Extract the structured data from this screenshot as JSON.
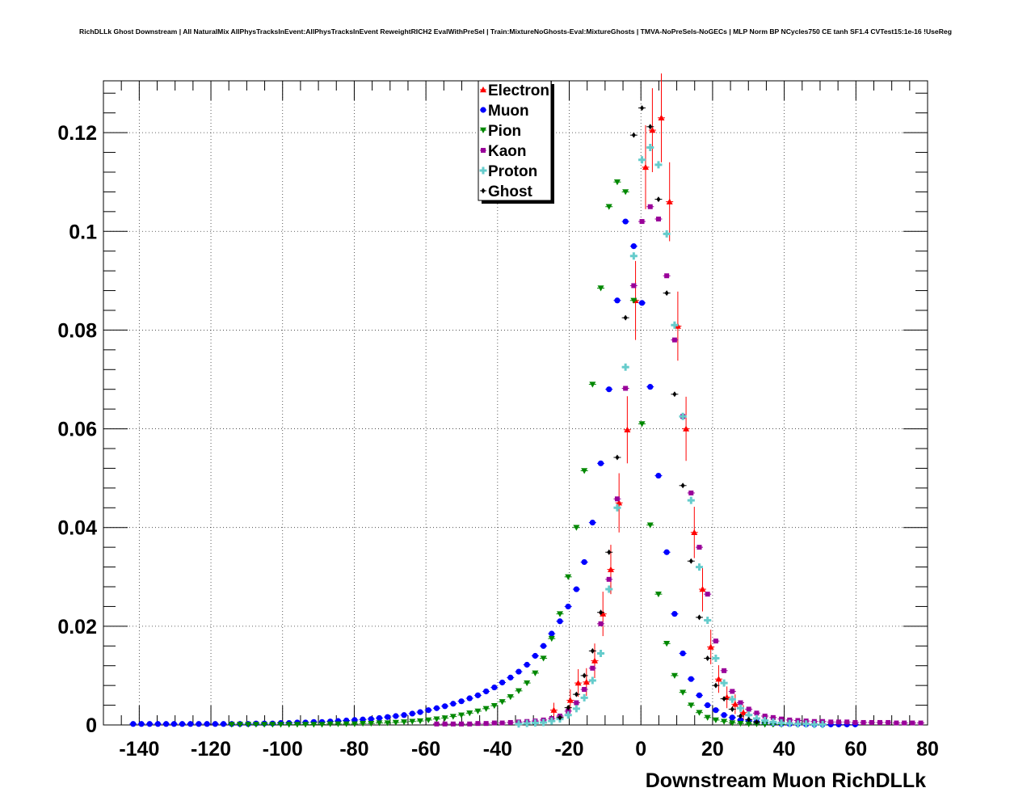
{
  "chart_data": {
    "type": "scatter",
    "title": "RichDLLk Ghost Downstream | All NaturalMix AllPhysTracksInEvent:AllPhysTracksInEvent ReweightRICH2 EvalWithPreSel | Train:MixtureNoGhosts-Eval:MixtureGhosts | TMVA-NoPreSels-NoGECs | MLP Norm BP NCycles750 CE tanh SF1.4 CVTest15:1e-16 !UseReg",
    "xlabel": "Downstream Muon RichDLLk",
    "ylabel": "",
    "xlim": [
      -150,
      80
    ],
    "ylim": [
      0,
      0.1305
    ],
    "grid": true,
    "legend_position": "top-center",
    "x_ticks": [
      "-140",
      "-120",
      "-100",
      "-80",
      "-60",
      "-40",
      "-20",
      "0",
      "20",
      "40",
      "60",
      "80"
    ],
    "y_ticks": [
      "0",
      "0.02",
      "0.04",
      "0.06",
      "0.08",
      "0.1",
      "0.12"
    ],
    "series": [
      {
        "name": "Electron",
        "color": "#ff0000",
        "marker": "triangle-up",
        "x": [
          -24.3,
          -19.7,
          -17.5,
          -15.2,
          -12.9,
          -10.6,
          -8.4,
          -6.1,
          -3.8,
          -1.5,
          1.3,
          3.2,
          5.7,
          8.0,
          10.3,
          12.6,
          14.9,
          17.2,
          19.5,
          21.7,
          24.0,
          26.3,
          28.6
        ],
        "y": [
          0.003,
          0.005,
          0.0085,
          0.0087,
          0.013,
          0.0225,
          0.0315,
          0.045,
          0.0598,
          0.086,
          0.113,
          0.1205,
          0.123,
          0.106,
          0.0808,
          0.06,
          0.039,
          0.0275,
          0.0158,
          0.0093,
          0.0056,
          0.0042,
          0.0025
        ],
        "err": [
          0.0015,
          0.0022,
          0.0028,
          0.0028,
          0.0035,
          0.0045,
          0.005,
          0.006,
          0.0068,
          0.008,
          0.0085,
          0.0085,
          0.009,
          0.008,
          0.007,
          0.0065,
          0.0052,
          0.0045,
          0.0035,
          0.0028,
          0.0022,
          0.002,
          0.0015
        ]
      },
      {
        "name": "Muon",
        "color": "#0000ff",
        "marker": "circle",
        "x": [
          -141.7,
          -139.4,
          -137.1,
          -134.8,
          -132.5,
          -130.3,
          -128.0,
          -125.7,
          -123.4,
          -121.1,
          -118.8,
          -116.5,
          -114.2,
          -111.9,
          -109.6,
          -107.4,
          -105.1,
          -102.8,
          -100.5,
          -98.2,
          -95.9,
          -93.6,
          -91.3,
          -89.0,
          -86.7,
          -84.5,
          -82.2,
          -79.9,
          -77.6,
          -75.3,
          -73.0,
          -70.7,
          -68.4,
          -66.1,
          -63.8,
          -61.6,
          -59.3,
          -57.0,
          -54.7,
          -52.4,
          -50.1,
          -47.8,
          -45.5,
          -43.2,
          -40.9,
          -38.7,
          -36.4,
          -34.1,
          -31.8,
          -29.5,
          -27.2,
          -24.9,
          -22.6,
          -20.3,
          -18.0,
          -15.8,
          -13.5,
          -11.2,
          -8.9,
          -6.6,
          -4.3,
          -2.0,
          0.3,
          2.6,
          4.9,
          7.2,
          9.4,
          11.7,
          14.0,
          16.3,
          18.6,
          20.9,
          23.2,
          25.5,
          27.8,
          30.1,
          32.3,
          34.6,
          36.9,
          39.2,
          41.5,
          43.8,
          46.1,
          48.4,
          50.7,
          53.0,
          55.2,
          57.5,
          59.8
        ],
        "y": [
          0.0002,
          0.0002,
          0.0002,
          0.0002,
          0.0002,
          0.0002,
          0.0002,
          0.0002,
          0.0002,
          0.0002,
          0.0002,
          0.0002,
          0.0002,
          0.0002,
          0.0002,
          0.0003,
          0.0003,
          0.0003,
          0.0004,
          0.0004,
          0.0005,
          0.0005,
          0.0006,
          0.0006,
          0.0007,
          0.0008,
          0.0009,
          0.001,
          0.0011,
          0.0012,
          0.0014,
          0.0016,
          0.0018,
          0.002,
          0.0023,
          0.0026,
          0.003,
          0.0034,
          0.0038,
          0.0043,
          0.0048,
          0.0054,
          0.006,
          0.0068,
          0.0076,
          0.0086,
          0.0096,
          0.0108,
          0.0122,
          0.014,
          0.016,
          0.0185,
          0.021,
          0.024,
          0.0275,
          0.033,
          0.041,
          0.053,
          0.068,
          0.086,
          0.102,
          0.097,
          0.0855,
          0.0685,
          0.0505,
          0.035,
          0.0225,
          0.0145,
          0.0093,
          0.006,
          0.004,
          0.003,
          0.002,
          0.0015,
          0.001,
          0.0008,
          0.0006,
          0.0004,
          0.0003,
          0.0002,
          0.0002,
          0.0002,
          0.0001,
          0.0001,
          0.0001,
          0.0001,
          0.0001,
          0.0001,
          0.0001
        ]
      },
      {
        "name": "Pion",
        "color": "#008800",
        "marker": "triangle-down",
        "x": [
          -114.2,
          -111.9,
          -109.6,
          -107.4,
          -105.1,
          -102.8,
          -100.5,
          -98.2,
          -95.9,
          -93.6,
          -91.3,
          -89.0,
          -86.7,
          -84.5,
          -82.2,
          -79.9,
          -77.6,
          -75.3,
          -73.0,
          -70.7,
          -68.4,
          -66.1,
          -63.8,
          -61.6,
          -59.3,
          -57.0,
          -54.7,
          -52.4,
          -50.1,
          -47.8,
          -45.5,
          -43.2,
          -40.9,
          -38.7,
          -36.4,
          -34.1,
          -31.8,
          -29.5,
          -27.2,
          -24.9,
          -22.6,
          -20.3,
          -18.0,
          -15.8,
          -13.5,
          -11.2,
          -8.9,
          -6.6,
          -4.3,
          -2.0,
          0.3,
          2.6,
          4.9,
          7.2,
          9.4,
          11.7,
          14.0,
          16.3,
          18.6,
          20.9,
          23.2,
          25.5,
          27.8,
          30.1,
          32.3,
          34.6,
          36.9,
          39.2
        ],
        "y": [
          0.0001,
          0.0001,
          0.0001,
          0.0001,
          0.0001,
          0.0001,
          0.0001,
          0.0001,
          0.0001,
          0.0001,
          0.0001,
          0.0001,
          0.0002,
          0.0002,
          0.0002,
          0.0002,
          0.0003,
          0.0003,
          0.0004,
          0.0004,
          0.0005,
          0.0006,
          0.0007,
          0.0008,
          0.001,
          0.0012,
          0.0014,
          0.0017,
          0.002,
          0.0024,
          0.0028,
          0.0033,
          0.0039,
          0.0047,
          0.0057,
          0.0069,
          0.0085,
          0.0105,
          0.0135,
          0.0175,
          0.0225,
          0.03,
          0.04,
          0.0515,
          0.069,
          0.0885,
          0.105,
          0.11,
          0.108,
          0.086,
          0.061,
          0.0405,
          0.0265,
          0.0165,
          0.01,
          0.0066,
          0.004,
          0.0025,
          0.0015,
          0.001,
          0.0007,
          0.0004,
          0.0003,
          0.0002,
          0.0002,
          0.0001,
          0.0001,
          0.0001
        ]
      },
      {
        "name": "Kaon",
        "color": "#990099",
        "marker": "square",
        "x": [
          -57.0,
          -54.7,
          -52.4,
          -50.1,
          -47.8,
          -45.5,
          -43.2,
          -40.9,
          -38.7,
          -36.4,
          -34.1,
          -31.8,
          -29.5,
          -27.2,
          -24.9,
          -22.6,
          -20.3,
          -18.0,
          -15.8,
          -13.5,
          -11.2,
          -8.9,
          -6.6,
          -4.3,
          -2.0,
          0.3,
          2.6,
          4.9,
          7.2,
          9.4,
          11.7,
          14.0,
          16.3,
          18.6,
          20.9,
          23.2,
          25.5,
          27.8,
          30.1,
          32.3,
          34.6,
          36.9,
          39.2,
          41.5,
          43.8,
          46.1,
          48.4,
          50.7,
          53.0,
          55.2,
          57.5,
          59.8,
          62.1,
          64.4,
          66.7,
          69.0,
          71.3,
          73.5,
          75.8,
          78.1
        ],
        "y": [
          0.0002,
          0.0002,
          0.0002,
          0.0002,
          0.0002,
          0.0003,
          0.0003,
          0.0004,
          0.0004,
          0.0005,
          0.0006,
          0.0007,
          0.0008,
          0.001,
          0.0013,
          0.0018,
          0.0028,
          0.0045,
          0.0072,
          0.0115,
          0.0205,
          0.0295,
          0.0458,
          0.0682,
          0.089,
          0.102,
          0.105,
          0.1025,
          0.091,
          0.078,
          0.0625,
          0.047,
          0.036,
          0.0265,
          0.017,
          0.011,
          0.0068,
          0.0045,
          0.0032,
          0.0024,
          0.0018,
          0.0015,
          0.0012,
          0.001,
          0.0009,
          0.0008,
          0.0007,
          0.0007,
          0.0006,
          0.0006,
          0.0006,
          0.0005,
          0.0005,
          0.0005,
          0.0005,
          0.0005,
          0.0004,
          0.0004,
          0.0004,
          0.0004
        ]
      },
      {
        "name": "Proton",
        "color": "#66cccc",
        "marker": "cross",
        "x": [
          -34.1,
          -31.8,
          -29.5,
          -27.2,
          -24.9,
          -22.6,
          -20.3,
          -18.0,
          -15.8,
          -13.5,
          -11.2,
          -8.9,
          -6.6,
          -4.3,
          -2.0,
          0.3,
          2.6,
          4.9,
          7.2,
          9.4,
          11.7,
          14.0,
          16.3,
          18.6,
          20.9,
          23.2,
          25.5,
          27.8,
          30.1,
          32.3,
          34.6,
          36.9,
          39.2,
          41.5,
          43.8,
          46.1,
          48.4,
          50.7
        ],
        "y": [
          0.0002,
          0.0003,
          0.0004,
          0.0005,
          0.0008,
          0.0012,
          0.002,
          0.0033,
          0.0055,
          0.009,
          0.0145,
          0.0275,
          0.044,
          0.0725,
          0.095,
          0.1145,
          0.117,
          0.1135,
          0.0995,
          0.081,
          0.0625,
          0.0455,
          0.032,
          0.0212,
          0.0135,
          0.0085,
          0.0052,
          0.0034,
          0.002,
          0.0013,
          0.0009,
          0.0006,
          0.0004,
          0.0003,
          0.0002,
          0.0002,
          0.0001,
          0.0001
        ]
      },
      {
        "name": "Ghost",
        "color": "#000000",
        "marker": "diamond",
        "x": [
          -22.6,
          -20.3,
          -18.0,
          -15.8,
          -13.5,
          -11.2,
          -8.9,
          -6.6,
          -4.3,
          -2.0,
          0.3,
          2.6,
          4.9,
          7.2,
          9.4,
          11.7,
          14.0,
          16.3,
          18.6,
          20.9,
          23.2,
          25.5,
          27.8,
          30.1,
          32.3
        ],
        "y": [
          0.0015,
          0.0035,
          0.0062,
          0.01,
          0.015,
          0.0228,
          0.035,
          0.0542,
          0.0825,
          0.1195,
          0.125,
          0.1212,
          0.1065,
          0.0875,
          0.067,
          0.0485,
          0.0332,
          0.0218,
          0.0135,
          0.008,
          0.0053,
          0.0032,
          0.0018,
          0.0011,
          0.0006
        ]
      }
    ]
  }
}
